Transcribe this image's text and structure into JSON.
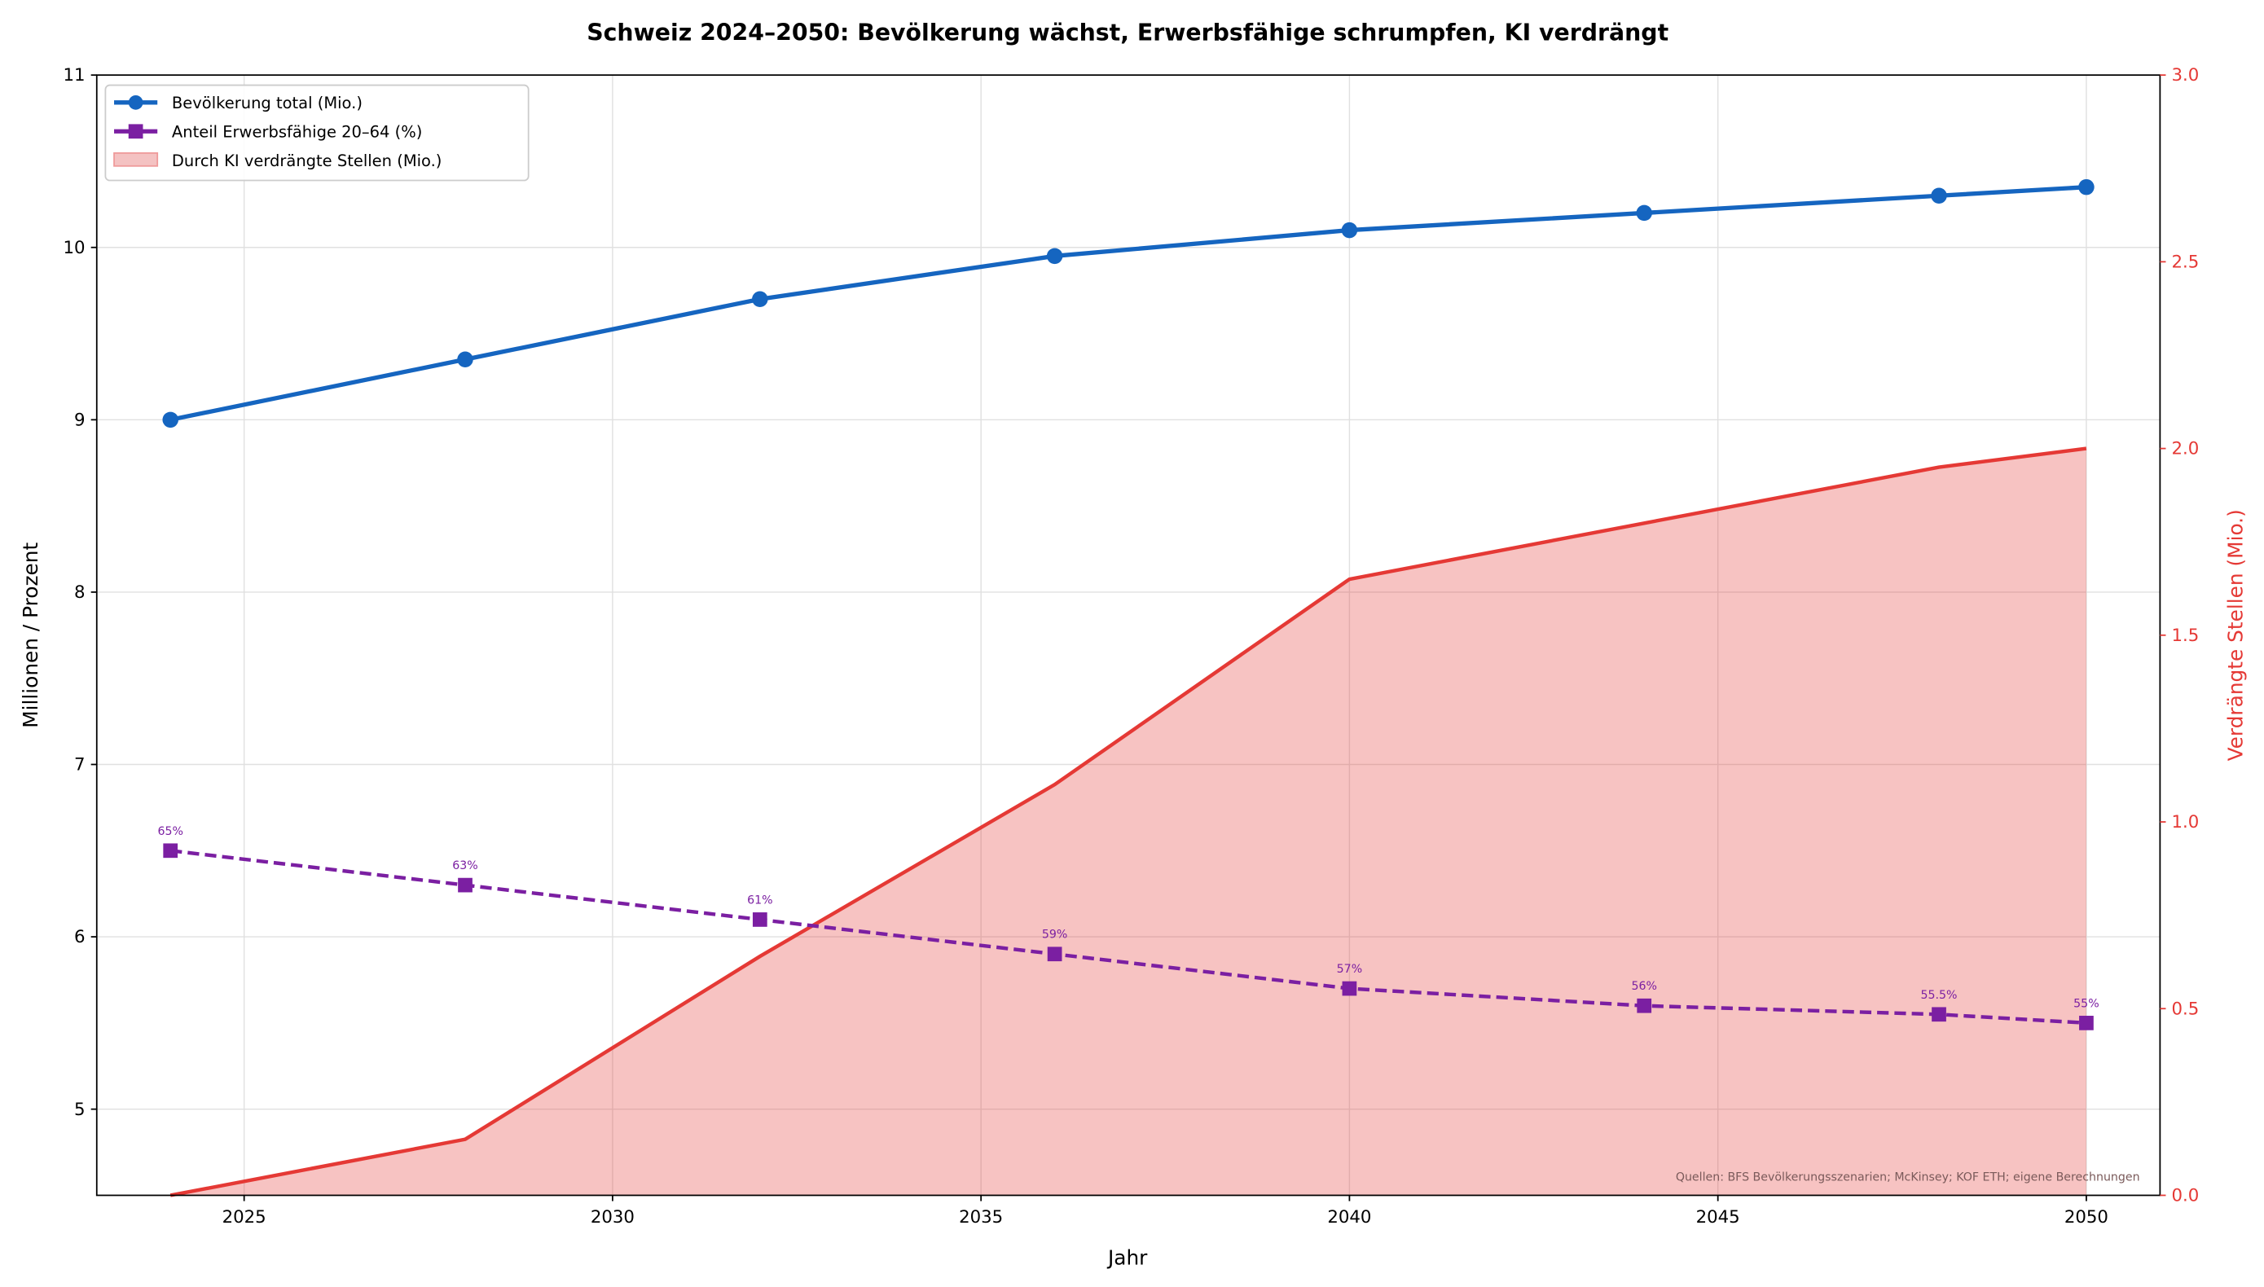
{
  "chart_data": {
    "type": "line",
    "title": "Schweiz 2024–2050: Bevölkerung wächst, Erwerbsfähige schrumpfen, KI verdrängt",
    "xlabel": "Jahr",
    "ylabel": "Millionen / Prozent",
    "ylabel_right": "Verdrängte Stellen (Mio.)",
    "xlim": [
      2023,
      2051
    ],
    "ylim": [
      4.5,
      11
    ],
    "ylim_right": [
      0,
      3
    ],
    "x_ticks": [
      "2025",
      "2030",
      "2035",
      "2040",
      "2045",
      "2050"
    ],
    "y_ticks": [
      "5",
      "6",
      "7",
      "8",
      "9",
      "10",
      "11"
    ],
    "y_ticks_right": [
      "0.0",
      "0.5",
      "1.0",
      "1.5",
      "2.0",
      "2.5",
      "3.0"
    ],
    "grid": true,
    "legend_position": "top-left",
    "x": [
      2024,
      2028,
      2032,
      2036,
      2040,
      2044,
      2048,
      2050
    ],
    "series": [
      {
        "name": "Bevölkerung total (Mio.)",
        "axis": "left",
        "style": "solid line, circle markers",
        "color": "#1565c0",
        "values": [
          9.0,
          9.35,
          9.7,
          9.95,
          10.1,
          10.2,
          10.3,
          10.35
        ]
      },
      {
        "name": "Anteil Erwerbsfähige 20–64 (%)",
        "axis": "left",
        "style": "dashed line, square markers",
        "color": "#7b1fa2",
        "values": [
          6.5,
          6.3,
          6.1,
          5.9,
          5.7,
          5.6,
          5.55,
          5.5
        ],
        "labels": [
          "65%",
          "63%",
          "61%",
          "59%",
          "57%",
          "56%",
          "55.5%",
          "55%"
        ]
      },
      {
        "name": "Durch KI verdrängte Stellen (Mio.)",
        "axis": "right",
        "style": "filled area",
        "color": "#e53935",
        "values": [
          0.0,
          0.15,
          0.64,
          1.1,
          1.65,
          1.8,
          1.95,
          2.0
        ]
      }
    ],
    "annotation": "Quellen: BFS Bevölkerungsszenarien; McKinsey; KOF ETH; eigene Berechnungen"
  }
}
